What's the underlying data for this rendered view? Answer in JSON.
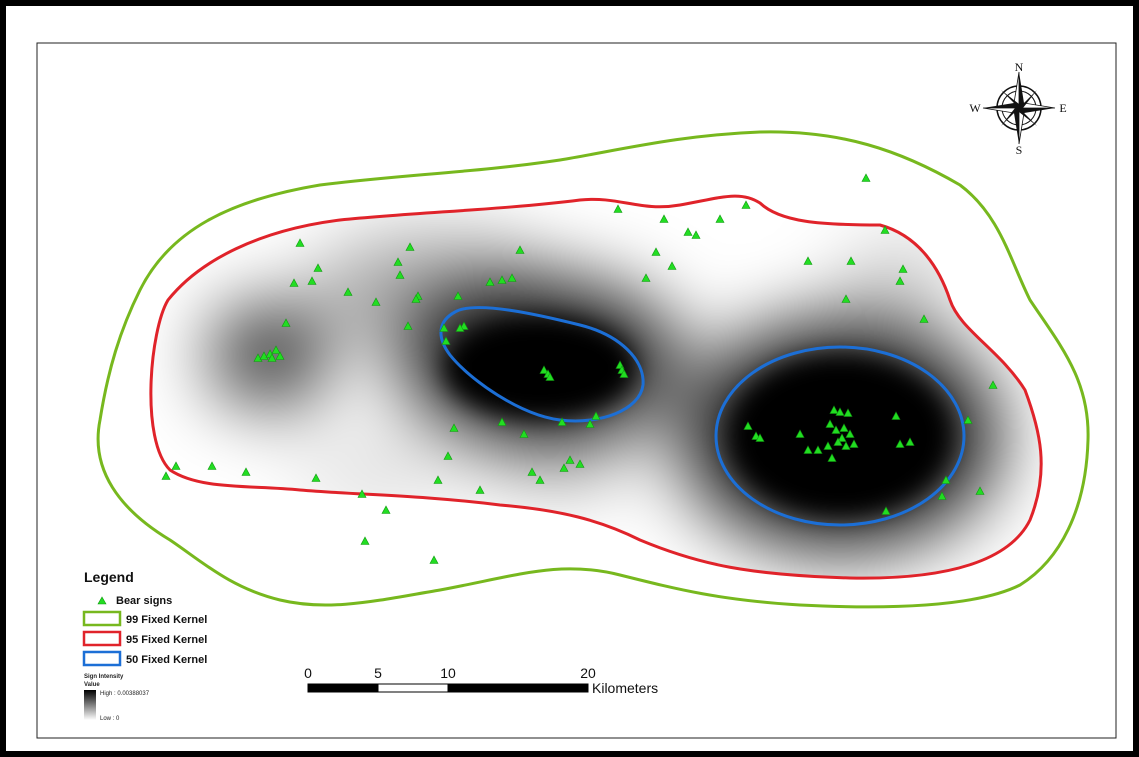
{
  "compass": {
    "north": "N",
    "south": "S",
    "east": "E",
    "west": "W",
    "icon": "compass-rose-icon"
  },
  "legend": {
    "title": "Legend",
    "items": [
      {
        "label": "Bear signs",
        "symbol": "triangle",
        "color": "#22dd22"
      },
      {
        "label": "99 Fixed Kernel",
        "symbol": "outline-box",
        "color": "#77b81e"
      },
      {
        "label": "95 Fixed Kernel",
        "symbol": "outline-box",
        "color": "#e0232a"
      },
      {
        "label": "50 Fixed Kernel",
        "symbol": "outline-box",
        "color": "#1c6fd6"
      }
    ],
    "intensity": {
      "title": "Sign Intensity",
      "subtitle": "Value",
      "high_label": "High : 0.00388037",
      "low_label": "Low : 0"
    }
  },
  "scale_bar": {
    "ticks": [
      "0",
      "5",
      "10",
      "20"
    ],
    "unit": "Kilometers"
  },
  "colors": {
    "k99": "#77b81e",
    "k95": "#e0232a",
    "k50": "#1c6fd6",
    "sign": "#22dd22",
    "density_high": "#000000",
    "density_low": "#ffffff"
  }
}
